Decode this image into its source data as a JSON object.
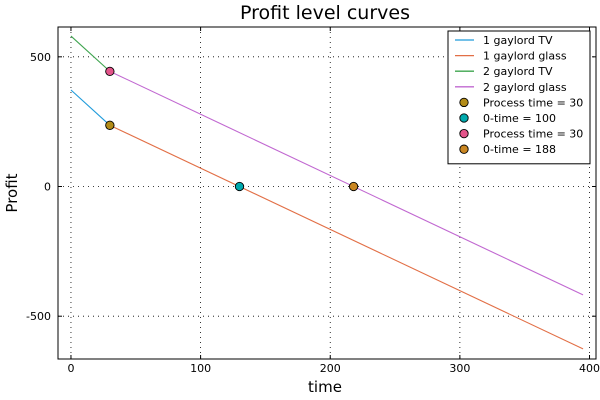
{
  "chart_data": {
    "type": "line",
    "title": "Profit level curves",
    "xlabel": "time",
    "ylabel": "Profit",
    "xlim": [
      -10,
      405
    ],
    "ylim": [
      -665,
      615
    ],
    "xticks": [
      0,
      100,
      200,
      300,
      400
    ],
    "yticks": [
      -500,
      0,
      500
    ],
    "grid": true,
    "grid_style": "dotted",
    "legend_position": "top-right",
    "series": [
      {
        "name": "1 gaylord TV",
        "kind": "line",
        "color": "#1f9bdb",
        "x": [
          0,
          30
        ],
        "y": [
          372,
          236
        ]
      },
      {
        "name": "1 gaylord glass",
        "kind": "line",
        "color": "#e26f46",
        "x": [
          30,
          395
        ],
        "y": [
          236,
          -626
        ]
      },
      {
        "name": "2 gaylord TV",
        "kind": "line",
        "color": "#3ea44e",
        "x": [
          0,
          30
        ],
        "y": [
          580,
          444
        ]
      },
      {
        "name": "2 gaylord glass",
        "kind": "line",
        "color": "#c168d1",
        "x": [
          30,
          395
        ],
        "y": [
          444,
          -418
        ]
      },
      {
        "name": "Process time = 30",
        "kind": "point",
        "color": "#b38c18",
        "x": [
          30
        ],
        "y": [
          236
        ]
      },
      {
        "name": "0-time = 100",
        "kind": "point",
        "color": "#00a9ad",
        "x": [
          130
        ],
        "y": [
          0
        ]
      },
      {
        "name": "Process time = 30",
        "kind": "point",
        "color": "#e3548a",
        "x": [
          30
        ],
        "y": [
          444
        ]
      },
      {
        "name": "0-time = 188",
        "kind": "point",
        "color": "#c98622",
        "x": [
          218
        ],
        "y": [
          0
        ]
      }
    ]
  }
}
